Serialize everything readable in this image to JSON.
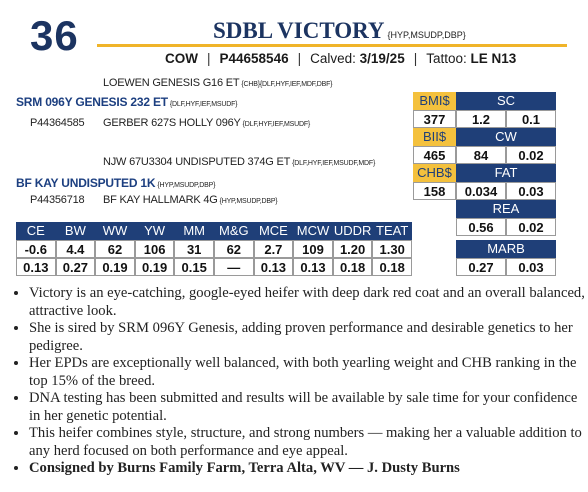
{
  "lot": "36",
  "name": "SDBL VICTORY",
  "name_suffix": "{HYP,MSUDP,DBP}",
  "info": {
    "sex": "COW",
    "registration": "P44658546",
    "calved_label": "Calved:",
    "calved": "3/19/25",
    "tattoo_label": "Tattoo:",
    "tattoo": "LE N13"
  },
  "pedigree": {
    "sire_sire": {
      "name": "LOEWEN GENESIS G16 ET",
      "tags": "{CHB}{DLF,HYF,IEF,MDF,DBF}"
    },
    "sire": {
      "name": "SRM 096Y GENESIS 232 ET",
      "tags": "{DLF,HYF,IEF,MSUDF}",
      "registration": "P44364585"
    },
    "sire_dam": {
      "name": "GERBER 627S HOLLY 096Y",
      "tags": "{DLF,HYF,IEF,MSUDF}"
    },
    "dam_sire": {
      "name": "NJW 67U3304 UNDISPUTED 374G ET",
      "tags": "{DLF,HYF,IEF,MSUDF,MDF}"
    },
    "dam": {
      "name": "BF KAY UNDISPUTED 1K",
      "tags": "{HYP,MSUDP,DBP}",
      "registration": "P44356718"
    },
    "dam_dam": {
      "name": "BF KAY HALLMARK 4G",
      "tags": "{HYP,MSUDP,DBP}"
    }
  },
  "indexes": [
    {
      "label": "BMI$",
      "value": "377"
    },
    {
      "label": "BII$",
      "value": "465"
    },
    {
      "label": "CHB$",
      "value": "158"
    }
  ],
  "carcass": [
    {
      "label": "SC",
      "values": [
        "1.2",
        "0.1"
      ]
    },
    {
      "label": "CW",
      "values": [
        "84",
        "0.02"
      ]
    },
    {
      "label": "FAT",
      "values": [
        "0.034",
        "0.03"
      ]
    },
    {
      "label": "REA",
      "values": [
        "0.56",
        "0.02"
      ]
    },
    {
      "label": "MARB",
      "values": [
        "0.27",
        "0.03"
      ]
    }
  ],
  "epd_table": {
    "headers": [
      "CE",
      "BW",
      "WW",
      "YW",
      "MM",
      "M&G",
      "MCE",
      "MCW",
      "UDDR",
      "TEAT"
    ],
    "rows": [
      [
        "-0.6",
        "4.4",
        "62",
        "106",
        "31",
        "62",
        "2.7",
        "109",
        "1.20",
        "1.30"
      ],
      [
        "0.13",
        "0.27",
        "0.19",
        "0.19",
        "0.15",
        "—",
        "0.13",
        "0.13",
        "0.18",
        "0.18"
      ]
    ]
  },
  "bullets": [
    "Victory is an eye-catching, google-eyed heifer with deep dark red coat and an overall balanced, attractive look.",
    "She is sired by SRM 096Y Genesis, adding proven performance and desirable genetics to her pedigree.",
    "Her EPDs are exceptionally well balanced, with both yearling weight and CHB ranking in the top 15% of the breed.",
    "DNA testing has been submitted and results will be available by sale time for your confidence in her genetic potential.",
    "This heifer combines style, structure, and strong numbers — making her a valuable addition to any herd focused on both performance and eye appeal."
  ],
  "consigned": "Consigned by Burns Family Farm, Terra Alta, WV — J. Dusty Burns"
}
